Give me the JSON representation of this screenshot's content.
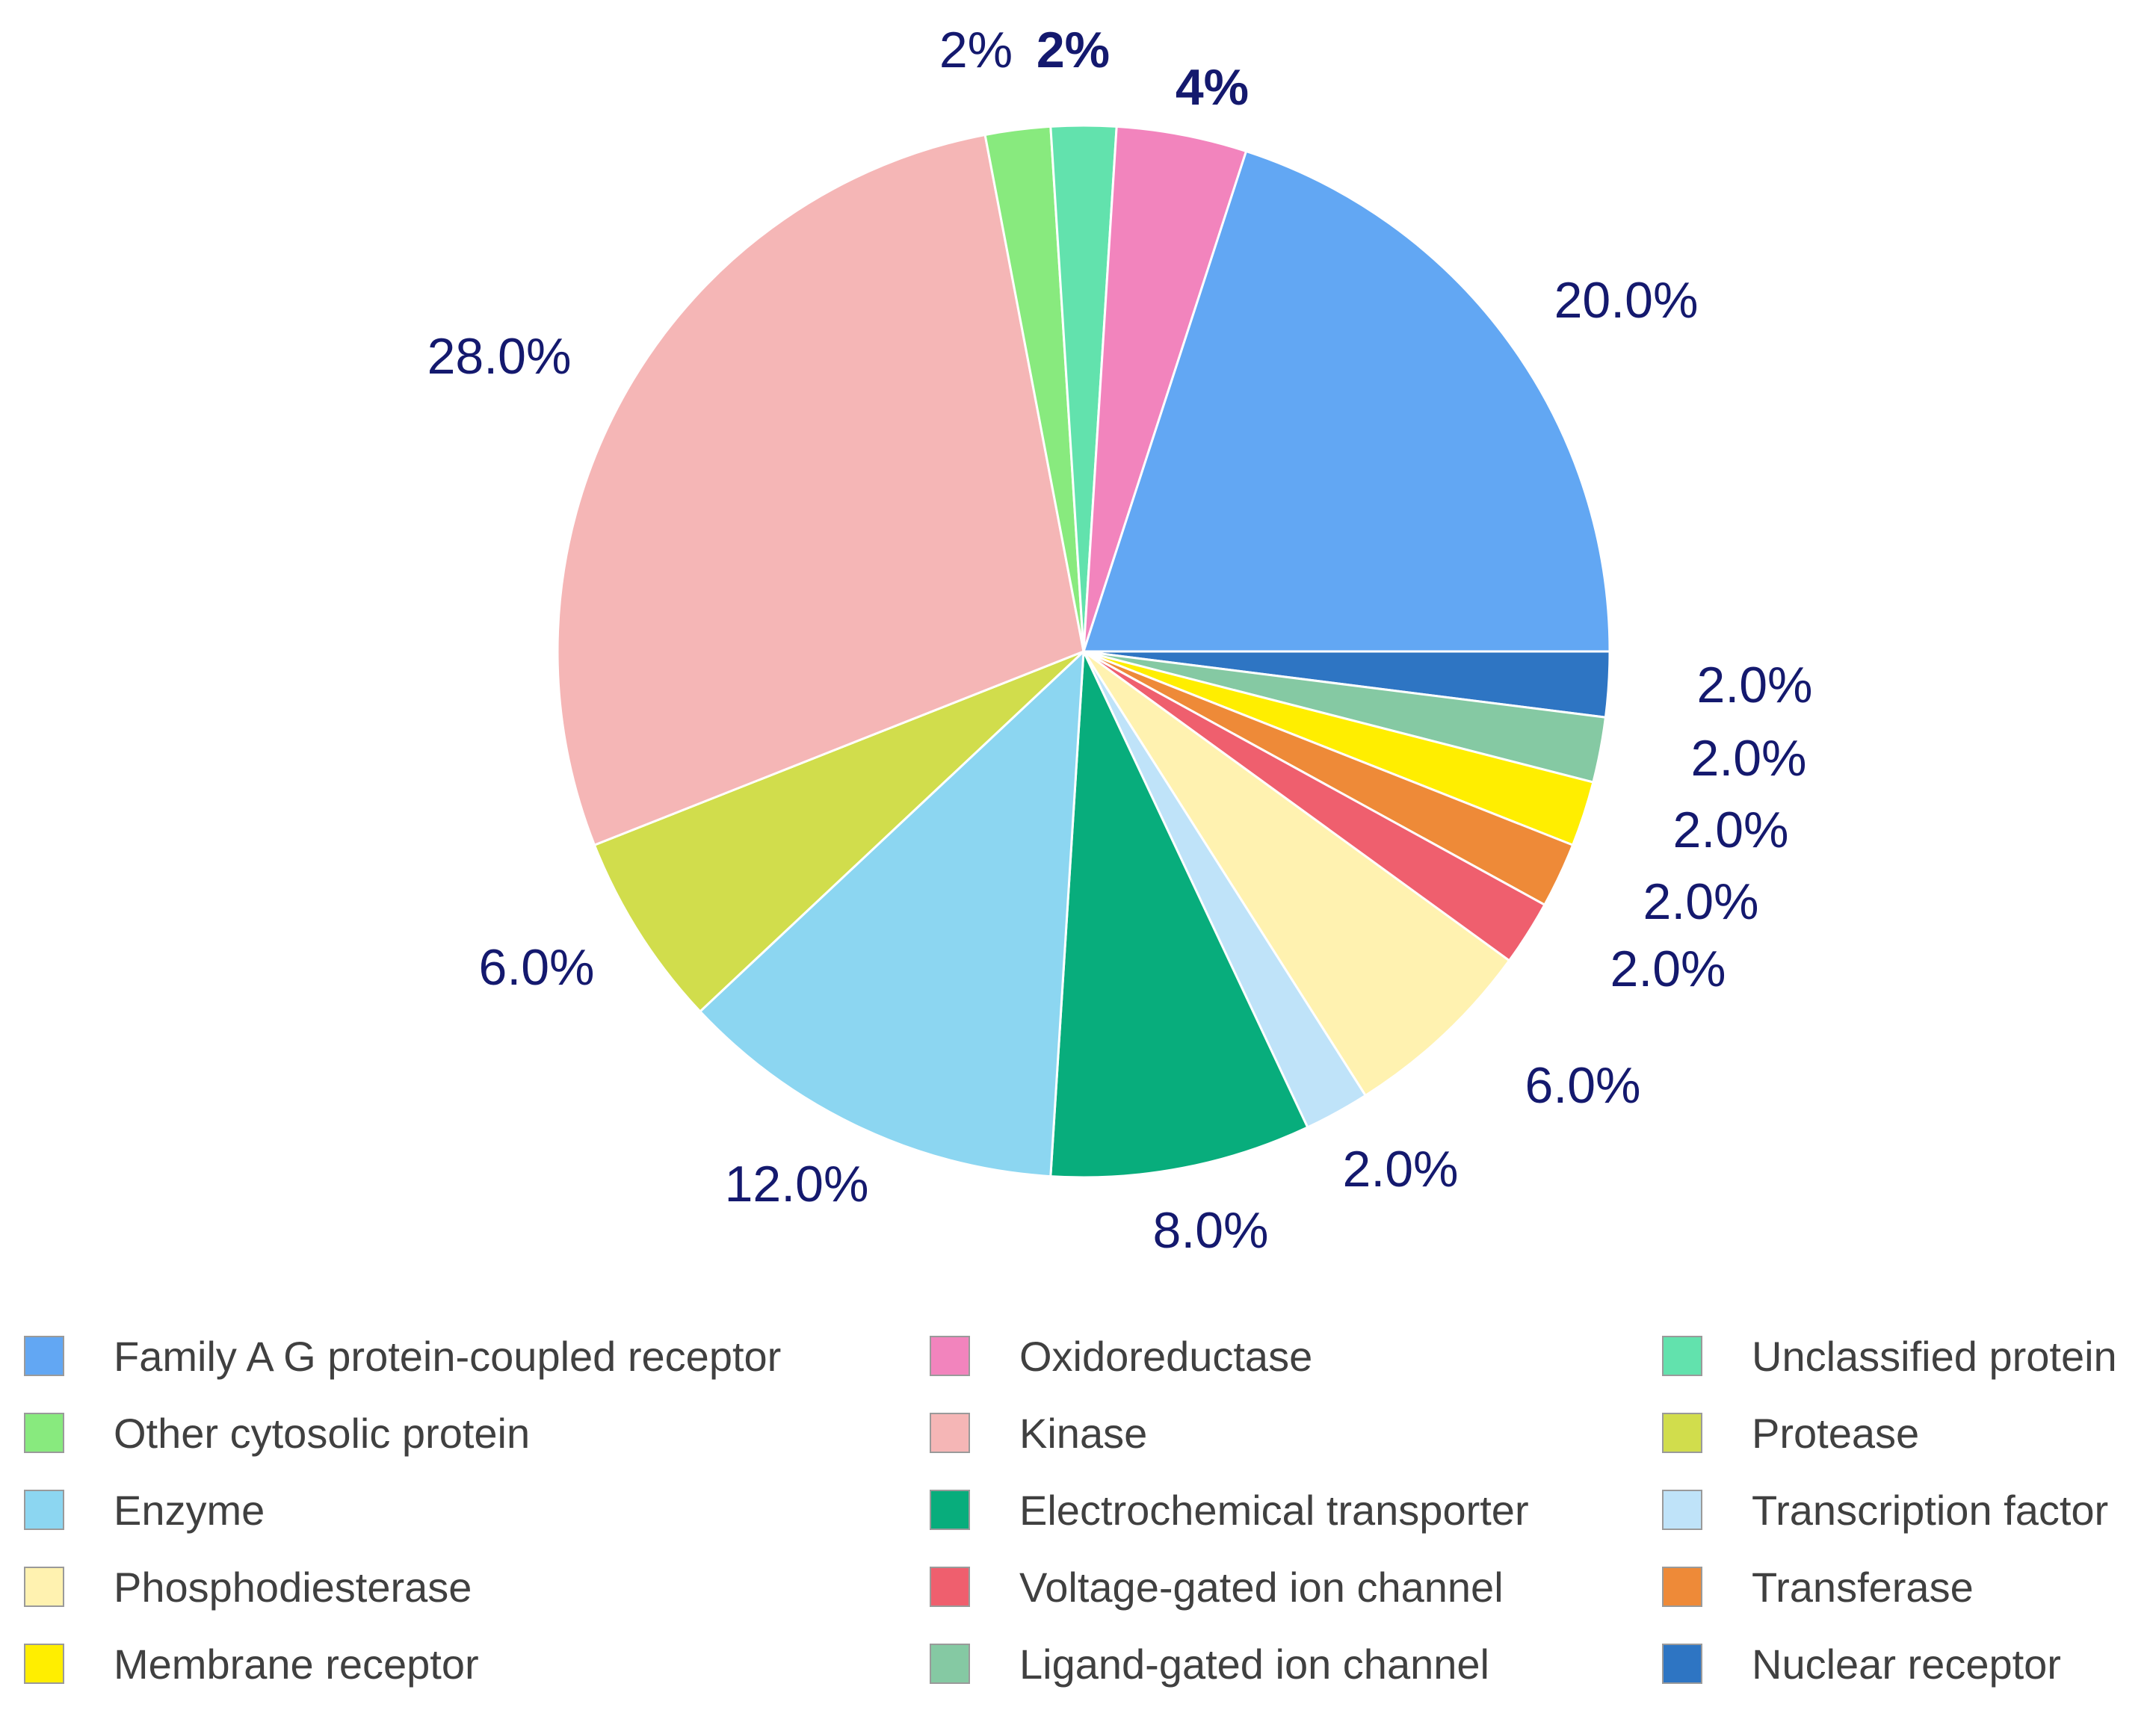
{
  "chart_data": {
    "type": "pie",
    "title": "",
    "start_angle_deg": 0,
    "direction": "clockwise",
    "slices": [
      {
        "name": "Nuclear receptor",
        "value": 2.0,
        "label": "2.0%",
        "color": "#2e75c3"
      },
      {
        "name": "Ligand-gated ion channel",
        "value": 2.0,
        "label": "2.0%",
        "color": "#85c9a3"
      },
      {
        "name": "Membrane receptor",
        "value": 2.0,
        "label": "2.0%",
        "color": "#ffee00"
      },
      {
        "name": "Transferase",
        "value": 2.0,
        "label": "2.0%",
        "color": "#ee8a38"
      },
      {
        "name": "Voltage-gated ion channel",
        "value": 2.0,
        "label": "2.0%",
        "color": "#ef5f6e"
      },
      {
        "name": "Phosphodiesterase",
        "value": 6.0,
        "label": "6.0%",
        "color": "#fff2b0"
      },
      {
        "name": "Transcription factor",
        "value": 2.0,
        "label": "2.0%",
        "color": "#bfe3f9"
      },
      {
        "name": "Electrochemical transporter",
        "value": 8.0,
        "label": "8.0%",
        "color": "#08ad7c"
      },
      {
        "name": "Enzyme",
        "value": 12.0,
        "label": "12.0%",
        "color": "#8cd6f1"
      },
      {
        "name": "Protease",
        "value": 6.0,
        "label": "6.0%",
        "color": "#d1dd4c"
      },
      {
        "name": "Kinase",
        "value": 28.0,
        "label": "28.0%",
        "color": "#f5b6b6"
      },
      {
        "name": "Other cytosolic protein",
        "value": 2.0,
        "label": "2%",
        "color": "#88ea7e"
      },
      {
        "name": "Unclassified protein",
        "value": 2.0,
        "label": "2%",
        "color": "#62e2ad"
      },
      {
        "name": "Oxidoreductase",
        "value": 4.0,
        "label": "4%",
        "color": "#f284bd"
      },
      {
        "name": "Family A G protein-coupled receptor",
        "value": 20.0,
        "label": "20.0%",
        "color": "#62a7f3"
      }
    ],
    "legend_placement": "bottom",
    "legend_order": [
      "Family A G protein-coupled receptor",
      "Oxidoreductase",
      "Unclassified protein",
      "Other cytosolic protein",
      "Kinase",
      "Protease",
      "Enzyme",
      "Electrochemical transporter",
      "Transcription factor",
      "Phosphodiesterase",
      "Voltage-gated ion channel",
      "Transferase",
      "Membrane receptor",
      "Ligand-gated ion channel",
      "Nuclear receptor"
    ]
  }
}
